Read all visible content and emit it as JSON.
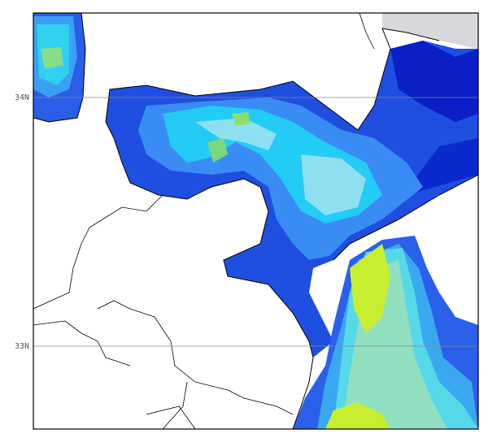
{
  "map": {
    "lat_labels": [
      "34N",
      "33N"
    ]
  }
}
